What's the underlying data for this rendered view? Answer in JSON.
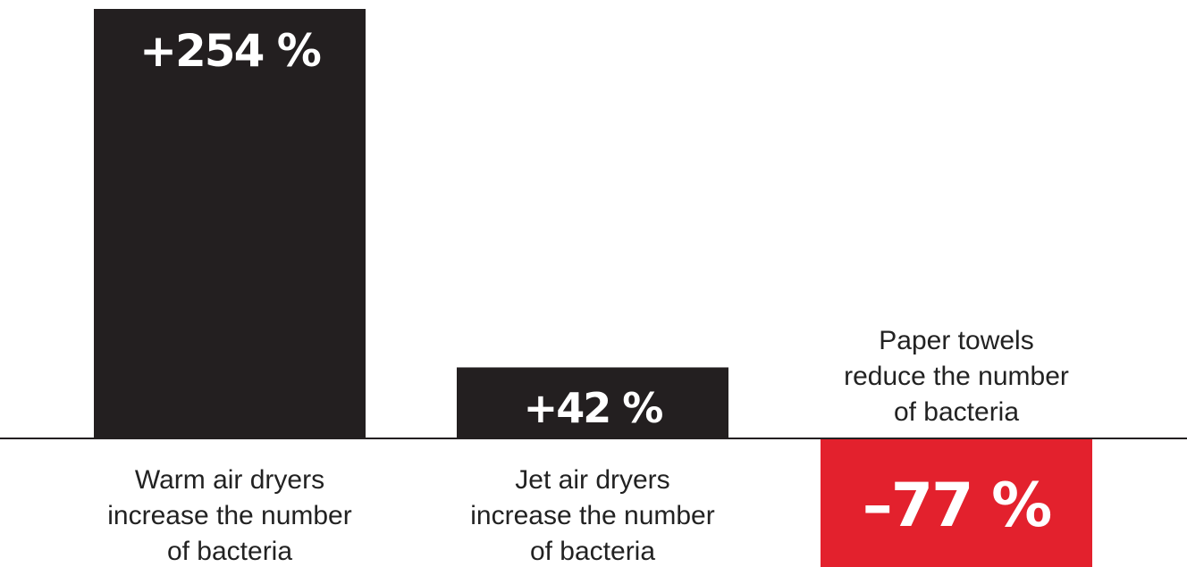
{
  "chart_data": {
    "type": "bar",
    "title": "",
    "xlabel": "",
    "ylabel": "",
    "ylim": [
      -77,
      254
    ],
    "categories": [
      "Warm air dryers",
      "Jet air dryers",
      "Paper towels"
    ],
    "values": [
      254,
      42,
      -77
    ],
    "value_labels": [
      "+254 %",
      "+42 %",
      "–77 %"
    ],
    "captions": [
      [
        "Warm air dryers",
        "increase the number",
        "of bacteria"
      ],
      [
        "Jet air dryers",
        "increase the number",
        "of bacteria"
      ],
      [
        "Paper towels",
        "reduce the number",
        "of bacteria"
      ]
    ],
    "colors": {
      "positive": "#231f20",
      "negative": "#e3212d",
      "baseline": "#231f20",
      "label_text": "#ffffff",
      "caption_text": "#222222"
    },
    "grid": false,
    "legend": "none"
  }
}
